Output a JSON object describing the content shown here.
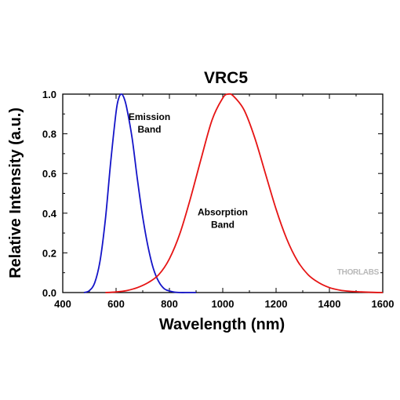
{
  "chart_data": {
    "type": "line",
    "title": "VRC5",
    "xlabel": "Wavelength (nm)",
    "ylabel": "Relative Intensity (a.u.)",
    "xlim": [
      400,
      1600
    ],
    "ylim": [
      0,
      1.0
    ],
    "x_ticks": [
      400,
      600,
      800,
      1000,
      1200,
      1400,
      1600
    ],
    "x_tick_labels": [
      "400",
      "600",
      "800",
      "1000",
      "1200",
      "1400",
      "1600"
    ],
    "y_ticks": [
      0.0,
      0.2,
      0.4,
      0.6,
      0.8,
      1.0
    ],
    "y_tick_labels": [
      "0.0",
      "0.2",
      "0.4",
      "0.6",
      "0.8",
      "1.0"
    ],
    "grid": false,
    "legend": "none",
    "annotations": [
      {
        "lines": [
          "Emission",
          "Band"
        ],
        "x": 725,
        "y": 0.87
      },
      {
        "lines": [
          "Absorption",
          "Band"
        ],
        "x": 1000,
        "y": 0.39
      }
    ],
    "watermark": "THORLABS",
    "series": [
      {
        "color": "#1414c8",
        "x": [
          480,
          500,
          520,
          540,
          560,
          580,
          600,
          610,
          620,
          630,
          640,
          660,
          680,
          700,
          720,
          740,
          760,
          780,
          800,
          820,
          840,
          870,
          900
        ],
        "y": [
          0.0,
          0.01,
          0.05,
          0.16,
          0.37,
          0.66,
          0.91,
          0.98,
          1.0,
          0.98,
          0.93,
          0.78,
          0.57,
          0.38,
          0.23,
          0.12,
          0.055,
          0.02,
          0.008,
          0.002,
          0.0,
          0.0,
          0.0
        ]
      },
      {
        "color": "#e61414",
        "x": [
          560,
          600,
          640,
          680,
          720,
          760,
          800,
          840,
          880,
          920,
          960,
          1000,
          1020,
          1040,
          1080,
          1120,
          1160,
          1200,
          1240,
          1280,
          1320,
          1360,
          1400,
          1440,
          1480,
          1520,
          1560,
          1600
        ],
        "y": [
          0.0,
          0.003,
          0.01,
          0.025,
          0.05,
          0.09,
          0.17,
          0.3,
          0.48,
          0.68,
          0.87,
          0.98,
          1.0,
          0.99,
          0.92,
          0.78,
          0.6,
          0.42,
          0.27,
          0.16,
          0.09,
          0.05,
          0.025,
          0.012,
          0.006,
          0.003,
          0.001,
          0.0
        ]
      }
    ]
  }
}
